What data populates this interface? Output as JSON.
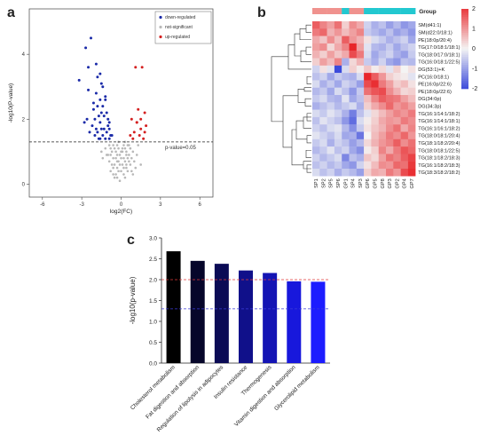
{
  "panel_letters": {
    "a": "a",
    "b": "b",
    "c": "c"
  },
  "colors": {
    "down": "#1a2aa8",
    "up": "#d42020",
    "ns": "#b8b8b8",
    "group_a": "#f0928e",
    "group_b": "#22c8d0",
    "heat_high": "#e8262a",
    "heat_mid": "#f4f4f4",
    "heat_low": "#2a3ad8",
    "ref_red": "#e03a3a",
    "ref_blue": "#3a3ad8"
  },
  "chart_data": [
    {
      "type": "scatter",
      "title": "",
      "xlabel": "log2(FC)",
      "ylabel": "-log10(P-value)",
      "xlim": [
        -7,
        7
      ],
      "ylim": [
        -0.4,
        5.4
      ],
      "xticks": [
        "-6",
        "-3",
        "0",
        "3",
        "6"
      ],
      "xtick_values": [
        -6,
        -3,
        0,
        3,
        6
      ],
      "yticks": [
        "0",
        "2",
        "4"
      ],
      "ytick_values": [
        0,
        2,
        4
      ],
      "threshold": {
        "y": 1.3,
        "label": "p-value=0.05"
      },
      "legend_position": "top-right",
      "series": [
        {
          "name": "down-regulated",
          "color_key": "down",
          "x": [
            -2.3,
            -2.7,
            -2.5,
            -1.9,
            -1.8,
            -1.6,
            -1.5,
            -3.2,
            -1.2,
            -1.8,
            -2.1,
            -1.4,
            -1.1,
            -1.7,
            -2.6,
            -2.0,
            -1.3,
            -0.9,
            -1.6,
            -2.2,
            -1.0,
            -1.5,
            -1.9,
            -2.4,
            -1.1,
            -0.8,
            -1.4,
            -2.0,
            -1.7,
            -1.2,
            -0.9,
            -1.6,
            -1.3,
            -2.8,
            -1.8,
            -1.0,
            -1.5,
            -0.7,
            -2.1,
            -1.2,
            -1.9,
            -1.4,
            -0.9,
            -2.5,
            -1.6
          ],
          "y": [
            4.5,
            4.2,
            3.6,
            3.7,
            3.3,
            3.4,
            3.1,
            3.2,
            2.6,
            2.4,
            2.3,
            2.4,
            2.2,
            2.1,
            2.0,
            2.0,
            2.1,
            1.9,
            1.9,
            1.8,
            1.8,
            1.7,
            1.7,
            1.6,
            1.6,
            1.5,
            1.5,
            1.5,
            1.4,
            1.4,
            1.4,
            1.4,
            1.7,
            1.9,
            1.6,
            2.0,
            2.2,
            1.5,
            2.5,
            2.7,
            2.8,
            3.0,
            1.7,
            2.9,
            2.6
          ]
        },
        {
          "name": "not-significant",
          "color_key": "ns",
          "x": [
            -0.3,
            0.2,
            -0.6,
            0.5,
            -0.1,
            0.3,
            -0.4,
            0.7,
            -0.8,
            0.1,
            -0.2,
            0.4,
            -0.5,
            0.6,
            0.0,
            -0.7,
            0.8,
            -0.3,
            0.2,
            -0.9,
            0.9,
            -0.1,
            0.3,
            -0.4,
            0.5,
            -0.6,
            0.1,
            -0.2,
            0.4,
            -1.0,
            1.0,
            -0.3,
            0.6,
            -0.5,
            0.2,
            -0.8,
            0.7,
            0.0,
            -0.4,
            0.3,
            -1.2,
            1.2,
            -0.6,
            0.5,
            -0.1,
            0.8,
            -0.7,
            0.1,
            -0.3,
            0.4,
            -1.4,
            1.3,
            0.0,
            -0.2,
            0.6,
            -0.9,
            0.2,
            -0.5,
            1.1,
            -1.1,
            0.3,
            -0.3,
            0.7,
            -0.6,
            0.9,
            -1.5,
            1.5,
            -0.2,
            0.4,
            -0.8
          ],
          "y": [
            0.2,
            0.3,
            0.5,
            0.4,
            0.1,
            0.7,
            0.8,
            0.6,
            0.9,
            1.0,
            1.1,
            0.9,
            0.6,
            1.2,
            0.4,
            1.0,
            0.8,
            1.2,
            0.5,
            0.7,
            1.0,
            0.9,
            1.1,
            0.3,
            0.8,
            1.2,
            0.6,
            0.7,
            1.0,
            0.9,
            0.7,
            0.5,
            0.9,
            1.1,
            1.2,
            0.4,
            1.1,
            0.8,
            1.0,
            0.2,
            1.1,
            0.9,
            0.3,
            1.2,
            0.6,
            0.4,
            0.6,
            1.1,
            0.9,
            0.5,
            0.8,
            1.2,
            1.0,
            0.4,
            0.7,
            1.2,
            0.8,
            0.2,
            0.5,
            0.9,
            1.3,
            0.7,
            1.1,
            0.8,
            0.3,
            1.0,
            0.6,
            1.3,
            0.6,
            1.1
          ]
        },
        {
          "name": "up-regulated",
          "color_key": "up",
          "x": [
            1.1,
            1.6,
            1.3,
            1.8,
            0.8,
            1.2,
            1.5,
            1.0,
            1.9,
            0.7,
            1.4,
            1.7,
            0.9,
            1.2,
            1.5,
            1.8
          ],
          "y": [
            3.6,
            3.6,
            2.3,
            2.2,
            2.0,
            1.9,
            1.7,
            1.6,
            1.8,
            1.5,
            1.5,
            1.4,
            1.4,
            1.9,
            2.0,
            1.6
          ]
        }
      ]
    },
    {
      "type": "heatmap",
      "title": "",
      "legend_title": "Group",
      "scale_ticks": [
        "2",
        "1",
        "0",
        "-1",
        "-2"
      ],
      "scale_values": [
        2,
        1,
        0,
        -1,
        -2
      ],
      "columns": [
        "SP1",
        "SP2",
        "SP5",
        "SP6",
        "GP1",
        "SP4",
        "SP3",
        "GP6",
        "GP5",
        "GP8",
        "GP3",
        "GP2",
        "GP4",
        "GP7"
      ],
      "column_groups": [
        "group_a",
        "group_a",
        "group_a",
        "group_a",
        "group_b",
        "group_a",
        "group_a",
        "group_b",
        "group_b",
        "group_b",
        "group_b",
        "group_b",
        "group_b",
        "group_b"
      ],
      "rows": [
        "SM(d41:1)",
        "SM(d22:0/18:1)",
        "PE(18:0p/20:4)",
        "TG(17:0/18:1/18:1)",
        "TG(18:0/17:0/18:1)",
        "TG(16:0/18:1/22:5)",
        "DG(53:1)+K",
        "PC(16:0/18:1)",
        "PE(16:0p/22:6)",
        "PE(18:0p/22:6)",
        "DG(34:0p)",
        "DG(34:3p)",
        "TG(16:1/14:1/18:2)",
        "TG(16:1/14:1/18:1)",
        "TG(16:1/16:1/18:2)",
        "TG(18:0/18:1/20:4)",
        "TG(18:1/18:2/20:4)",
        "TG(18:0/18:1/22:5)",
        "TG(18:1/18:2/18:3)",
        "TG(16:1/18:2/18:3)",
        "TG(18:3/18:2/18:2)"
      ],
      "values": [
        [
          1.6,
          1.2,
          0.9,
          1.4,
          0.4,
          1.1,
          0.8,
          -0.4,
          -0.8,
          -0.6,
          -1.0,
          -0.7,
          -1.1,
          -0.9
        ],
        [
          1.3,
          1.5,
          0.7,
          1.0,
          0.6,
          0.9,
          1.2,
          -0.5,
          -0.7,
          -0.9,
          -0.6,
          -1.0,
          -0.8,
          -1.1
        ],
        [
          0.8,
          0.5,
          1.1,
          0.6,
          1.6,
          1.0,
          0.7,
          0.2,
          -0.3,
          -0.5,
          -0.8,
          -0.6,
          -0.4,
          -0.9
        ],
        [
          0.9,
          1.1,
          0.3,
          0.8,
          1.2,
          2.4,
          0.9,
          -0.2,
          -0.7,
          -0.8,
          -0.5,
          -0.9,
          -0.6,
          -0.4
        ],
        [
          0.7,
          0.4,
          0.9,
          0.5,
          0.8,
          1.8,
          1.3,
          -0.3,
          -0.9,
          -0.6,
          -0.4,
          -0.8,
          -1.0,
          -0.5
        ],
        [
          0.4,
          0.9,
          0.6,
          1.2,
          -0.8,
          0.3,
          0.7,
          -0.5,
          -0.8,
          -0.4,
          -0.9,
          -1.1,
          -0.6,
          -0.7
        ],
        [
          -0.4,
          0.2,
          -0.2,
          -2.0,
          -0.3,
          0.4,
          0.1,
          0.5,
          0.1,
          0.3,
          -0.2,
          0.4,
          0.0,
          0.2
        ],
        [
          -0.6,
          -0.4,
          -0.9,
          -0.5,
          -0.7,
          -0.8,
          -0.3,
          2.2,
          1.6,
          1.0,
          0.4,
          0.2,
          0.1,
          -0.2
        ],
        [
          -0.3,
          -0.8,
          -0.5,
          -0.9,
          -0.4,
          -0.6,
          -1.0,
          1.8,
          2.1,
          1.3,
          0.9,
          0.4,
          0.6,
          0.2
        ],
        [
          -0.7,
          -0.5,
          -0.9,
          -0.3,
          -0.6,
          -1.1,
          -0.5,
          1.4,
          1.7,
          1.8,
          1.1,
          0.7,
          0.3,
          0.4
        ],
        [
          -0.5,
          -0.3,
          -0.7,
          -0.8,
          -0.2,
          -0.9,
          -0.6,
          0.6,
          1.2,
          1.6,
          1.4,
          1.3,
          0.9,
          0.6
        ],
        [
          -0.8,
          -0.6,
          -0.4,
          -0.7,
          -0.5,
          -0.3,
          -0.8,
          0.4,
          0.8,
          1.1,
          1.5,
          1.0,
          1.2,
          0.9
        ],
        [
          -0.3,
          -0.5,
          -0.2,
          -0.4,
          -0.8,
          -1.4,
          -0.6,
          -0.2,
          0.3,
          0.6,
          0.9,
          1.2,
          1.0,
          1.3
        ],
        [
          -0.6,
          -0.2,
          -0.4,
          -0.6,
          -1.1,
          -1.6,
          -0.3,
          0.1,
          0.4,
          0.8,
          1.0,
          0.9,
          1.3,
          1.1
        ],
        [
          -0.4,
          -0.6,
          -0.3,
          -0.2,
          -0.7,
          -1.2,
          -0.5,
          0.2,
          0.5,
          0.7,
          1.1,
          1.4,
          0.8,
          1.2
        ],
        [
          -0.2,
          -0.4,
          -0.6,
          -0.3,
          -0.9,
          -0.8,
          -1.5,
          0.0,
          0.6,
          0.9,
          1.3,
          1.1,
          1.5,
          1.0
        ],
        [
          -0.5,
          -0.3,
          -0.8,
          -0.4,
          -0.6,
          -1.0,
          -0.7,
          0.3,
          0.7,
          1.0,
          1.2,
          1.6,
          1.1,
          1.4
        ],
        [
          -0.7,
          -0.5,
          -0.2,
          -0.6,
          -0.4,
          -0.9,
          -1.2,
          0.1,
          0.4,
          1.2,
          0.8,
          1.3,
          1.7,
          1.5
        ],
        [
          -0.4,
          -0.7,
          -0.5,
          -0.3,
          -1.3,
          -0.6,
          -0.8,
          0.5,
          0.3,
          0.9,
          1.4,
          1.2,
          1.6,
          1.9
        ],
        [
          -0.6,
          -0.4,
          -0.7,
          -0.5,
          -0.9,
          -1.1,
          -0.4,
          0.2,
          0.6,
          1.1,
          1.0,
          1.5,
          1.4,
          2.0
        ],
        [
          -0.3,
          -0.6,
          -0.4,
          -0.8,
          -0.5,
          -0.7,
          -1.0,
          0.4,
          0.8,
          0.7,
          1.3,
          1.0,
          1.8,
          2.1
        ]
      ]
    },
    {
      "type": "bar",
      "title": "",
      "xlabel": "",
      "ylabel": "-log10(p-value)",
      "ylim": [
        0,
        3.0
      ],
      "yticks": [
        "0.0",
        "0.5",
        "1.0",
        "1.5",
        "2.0",
        "2.5",
        "3.0"
      ],
      "ytick_values": [
        0,
        0.5,
        1.0,
        1.5,
        2.0,
        2.5,
        3.0
      ],
      "categories": [
        "Cholesterol metabolism",
        "Fat digestion and absorption",
        "Regulation of lipolysis in adipocytes",
        "Insulin resistance",
        "Thermogenesis",
        "Vitamin digestion and absorption",
        "Glycerolipid metabolism"
      ],
      "values": [
        2.68,
        2.45,
        2.38,
        2.22,
        2.16,
        1.96,
        1.95
      ],
      "bar_colors": [
        "#000000",
        "#06062a",
        "#0b0b55",
        "#10108a",
        "#1414b4",
        "#1818dc",
        "#1c1cff"
      ],
      "ref_lines": [
        {
          "y": 2.0,
          "color_key": "ref_red"
        },
        {
          "y": 1.3,
          "color_key": "ref_blue"
        }
      ]
    }
  ]
}
